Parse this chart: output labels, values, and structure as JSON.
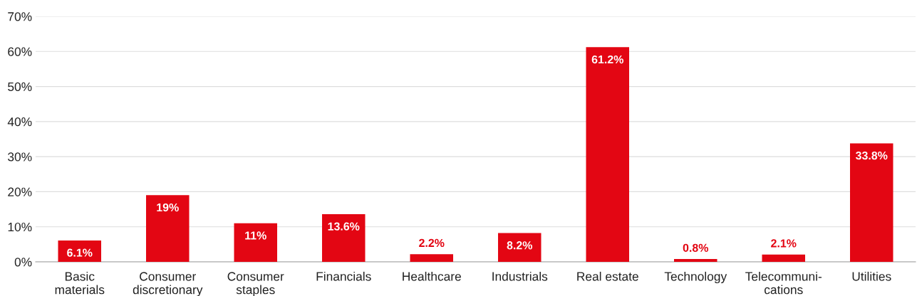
{
  "chart_data": {
    "type": "bar",
    "categories": [
      "Basic\nmaterials",
      "Consumer\ndiscretionary",
      "Consumer\nstaples",
      "Financials",
      "Healthcare",
      "Industrials",
      "Real estate",
      "Technology",
      "Telecommuni-\ncations",
      "Utilities"
    ],
    "values": [
      6.1,
      19,
      11,
      13.6,
      2.2,
      8.2,
      61.2,
      0.8,
      2.1,
      33.8
    ],
    "value_labels": [
      "6.1%",
      "19%",
      "11%",
      "13.6%",
      "2.2%",
      "8.2%",
      "61.2%",
      "0.8%",
      "2.1%",
      "33.8%"
    ],
    "color": "#e30613",
    "ylim": [
      0,
      70
    ],
    "yticks": [
      {
        "value": 0,
        "label": "0%"
      },
      {
        "value": 10,
        "label": "10%"
      },
      {
        "value": 20,
        "label": "20%"
      },
      {
        "value": 30,
        "label": "30%"
      },
      {
        "value": 40,
        "label": "40%"
      },
      {
        "value": 50,
        "label": "50%"
      },
      {
        "value": 60,
        "label": "60%"
      },
      {
        "value": 70,
        "label": "70%"
      }
    ],
    "grid": "y"
  }
}
